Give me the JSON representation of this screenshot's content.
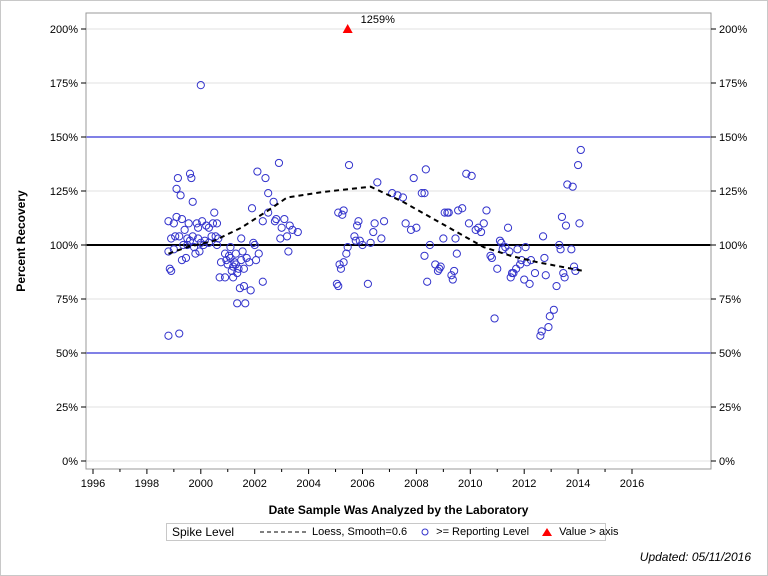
{
  "chart_data": {
    "type": "scatter",
    "xlabel": "Date Sample Was Analyzed by the Laboratory",
    "ylabel": "Percent Recovery",
    "xlim": [
      1995.8,
      2019.0
    ],
    "ylim": [
      -2,
      212
    ],
    "x_ticks": [
      "1996",
      "1998",
      "2000",
      "2002",
      "2004",
      "2006",
      "2008",
      "2010",
      "2012",
      "2014",
      "2016"
    ],
    "y_ticks": [
      "0%",
      "25%",
      "50%",
      "75%",
      "100%",
      "125%",
      "150%",
      "175%",
      "200%"
    ],
    "y_tick_values": [
      0,
      25,
      50,
      75,
      100,
      125,
      150,
      175,
      200
    ],
    "grid": "horizontal",
    "reference_lines": [
      {
        "value": 100,
        "color": "#000000"
      },
      {
        "value": 150,
        "color": "#0000cc"
      },
      {
        "value": 50,
        "color": "#0000cc"
      }
    ],
    "colors": {
      "points": "#3333cc",
      "loess": "#000000",
      "above_axis": "#ff0000",
      "grid": "#e0e0e0"
    },
    "points": [
      [
        1998.8,
        111
      ],
      [
        1998.8,
        97
      ],
      [
        1998.85,
        89
      ],
      [
        1998.9,
        88
      ],
      [
        1998.9,
        103
      ],
      [
        1998.8,
        58
      ],
      [
        1999.0,
        110
      ],
      [
        1999.05,
        104
      ],
      [
        1999.1,
        113
      ],
      [
        1999.1,
        126
      ],
      [
        1999.15,
        131
      ],
      [
        1999.0,
        98
      ],
      [
        1999.2,
        59
      ],
      [
        1999.25,
        123
      ],
      [
        1999.3,
        112
      ],
      [
        1999.2,
        104
      ],
      [
        1999.3,
        93
      ],
      [
        1999.35,
        100
      ],
      [
        1999.4,
        107
      ],
      [
        1999.45,
        94
      ],
      [
        1999.5,
        100
      ],
      [
        1999.5,
        103
      ],
      [
        1999.55,
        110
      ],
      [
        1999.6,
        133
      ],
      [
        1999.65,
        131
      ],
      [
        1999.7,
        120
      ],
      [
        1999.7,
        104
      ],
      [
        1999.75,
        99
      ],
      [
        1999.6,
        102
      ],
      [
        1999.8,
        96
      ],
      [
        1999.85,
        110
      ],
      [
        1999.9,
        108
      ],
      [
        1999.9,
        103
      ],
      [
        1999.95,
        97
      ],
      [
        2000.0,
        101
      ],
      [
        2000.0,
        174
      ],
      [
        2000.05,
        111
      ],
      [
        2000.1,
        100
      ],
      [
        2000.15,
        102
      ],
      [
        2000.2,
        109
      ],
      [
        2000.3,
        108
      ],
      [
        2000.3,
        101
      ],
      [
        2000.4,
        104
      ],
      [
        2000.45,
        110
      ],
      [
        2000.5,
        115
      ],
      [
        2000.55,
        104
      ],
      [
        2000.6,
        100
      ],
      [
        2000.65,
        103
      ],
      [
        2000.7,
        85
      ],
      [
        2000.75,
        92
      ],
      [
        2000.6,
        110
      ],
      [
        2000.9,
        96
      ],
      [
        2000.95,
        93
      ],
      [
        2001.0,
        91
      ],
      [
        2001.05,
        95
      ],
      [
        2000.9,
        85
      ],
      [
        2001.1,
        99
      ],
      [
        2001.1,
        94
      ],
      [
        2001.15,
        88
      ],
      [
        2001.2,
        90
      ],
      [
        2001.25,
        92
      ],
      [
        2001.2,
        85
      ],
      [
        2001.3,
        96
      ],
      [
        2001.3,
        91
      ],
      [
        2001.35,
        87
      ],
      [
        2001.35,
        73
      ],
      [
        2001.45,
        80
      ],
      [
        2001.5,
        93
      ],
      [
        2001.4,
        89
      ],
      [
        2001.5,
        103
      ],
      [
        2001.55,
        97
      ],
      [
        2001.6,
        81
      ],
      [
        2001.65,
        73
      ],
      [
        2001.7,
        94
      ],
      [
        2001.6,
        89
      ],
      [
        2001.8,
        92
      ],
      [
        2001.85,
        79
      ],
      [
        2001.9,
        117
      ],
      [
        2001.95,
        101
      ],
      [
        2002.0,
        100
      ],
      [
        2002.1,
        134
      ],
      [
        2002.15,
        96
      ],
      [
        2002.05,
        93
      ],
      [
        2002.4,
        131
      ],
      [
        2002.5,
        115
      ],
      [
        2002.3,
        83
      ],
      [
        2002.3,
        111
      ],
      [
        2002.5,
        124
      ],
      [
        2002.7,
        120
      ],
      [
        2002.75,
        111
      ],
      [
        2002.8,
        112
      ],
      [
        2002.9,
        138
      ],
      [
        2003.0,
        108
      ],
      [
        2002.95,
        103
      ],
      [
        2003.1,
        112
      ],
      [
        2003.2,
        104
      ],
      [
        2003.25,
        97
      ],
      [
        2003.3,
        109
      ],
      [
        2003.4,
        107
      ],
      [
        2003.6,
        106
      ],
      [
        2005.05,
        82
      ],
      [
        2005.1,
        81
      ],
      [
        2005.1,
        115
      ],
      [
        2005.15,
        91
      ],
      [
        2005.2,
        89
      ],
      [
        2005.25,
        114
      ],
      [
        2005.3,
        116
      ],
      [
        2005.3,
        92
      ],
      [
        2005.4,
        96
      ],
      [
        2005.45,
        99
      ],
      [
        2005.5,
        137
      ],
      [
        2005.7,
        104
      ],
      [
        2005.75,
        102
      ],
      [
        2005.8,
        109
      ],
      [
        2005.85,
        111
      ],
      [
        2005.9,
        102
      ],
      [
        2006.0,
        100
      ],
      [
        2006.2,
        82
      ],
      [
        2006.3,
        101
      ],
      [
        2006.4,
        106
      ],
      [
        2006.45,
        110
      ],
      [
        2006.55,
        129
      ],
      [
        2006.7,
        103
      ],
      [
        2006.8,
        111
      ],
      [
        2007.1,
        124
      ],
      [
        2007.3,
        123
      ],
      [
        2007.5,
        122
      ],
      [
        2007.6,
        110
      ],
      [
        2007.8,
        107
      ],
      [
        2007.9,
        131
      ],
      [
        2008.0,
        108
      ],
      [
        2008.2,
        124
      ],
      [
        2008.3,
        124
      ],
      [
        2008.35,
        135
      ],
      [
        2008.4,
        83
      ],
      [
        2008.3,
        95
      ],
      [
        2008.5,
        100
      ],
      [
        2008.7,
        91
      ],
      [
        2008.8,
        88
      ],
      [
        2008.85,
        89
      ],
      [
        2008.9,
        90
      ],
      [
        2009.0,
        103
      ],
      [
        2009.05,
        115
      ],
      [
        2009.15,
        115
      ],
      [
        2009.2,
        115
      ],
      [
        2009.3,
        86
      ],
      [
        2009.35,
        84
      ],
      [
        2009.4,
        88
      ],
      [
        2009.45,
        103
      ],
      [
        2009.5,
        96
      ],
      [
        2009.55,
        116
      ],
      [
        2009.7,
        117
      ],
      [
        2009.85,
        133
      ],
      [
        2009.95,
        110
      ],
      [
        2010.05,
        132
      ],
      [
        2010.2,
        107
      ],
      [
        2010.3,
        108
      ],
      [
        2010.4,
        106
      ],
      [
        2010.5,
        110
      ],
      [
        2010.6,
        116
      ],
      [
        2010.75,
        95
      ],
      [
        2010.8,
        94
      ],
      [
        2010.9,
        66
      ],
      [
        2011.0,
        89
      ],
      [
        2011.1,
        102
      ],
      [
        2011.15,
        101
      ],
      [
        2011.2,
        98
      ],
      [
        2011.3,
        99
      ],
      [
        2011.4,
        108
      ],
      [
        2011.45,
        97
      ],
      [
        2011.5,
        85
      ],
      [
        2011.55,
        87
      ],
      [
        2011.6,
        87
      ],
      [
        2011.7,
        89
      ],
      [
        2011.75,
        98
      ],
      [
        2011.85,
        91
      ],
      [
        2011.9,
        93
      ],
      [
        2012.0,
        84
      ],
      [
        2012.05,
        99
      ],
      [
        2012.1,
        92
      ],
      [
        2012.2,
        82
      ],
      [
        2012.25,
        93
      ],
      [
        2012.4,
        87
      ],
      [
        2012.6,
        58
      ],
      [
        2012.65,
        60
      ],
      [
        2012.7,
        104
      ],
      [
        2012.75,
        94
      ],
      [
        2012.8,
        86
      ],
      [
        2012.9,
        62
      ],
      [
        2012.95,
        67
      ],
      [
        2013.1,
        70
      ],
      [
        2013.2,
        81
      ],
      [
        2013.3,
        100
      ],
      [
        2013.35,
        98
      ],
      [
        2013.4,
        113
      ],
      [
        2013.45,
        87
      ],
      [
        2013.5,
        85
      ],
      [
        2013.55,
        109
      ],
      [
        2013.6,
        128
      ],
      [
        2013.8,
        127
      ],
      [
        2013.85,
        90
      ],
      [
        2013.9,
        88
      ],
      [
        2013.75,
        98
      ],
      [
        2014.0,
        137
      ],
      [
        2014.1,
        144
      ],
      [
        2014.05,
        110
      ]
    ],
    "loess": {
      "name": "Loess, Smooth=0.6",
      "points": [
        [
          1998.8,
          96
        ],
        [
          1999.5,
          99
        ],
        [
          2000.5,
          102
        ],
        [
          2001.5,
          108
        ],
        [
          2002.5,
          116
        ],
        [
          2003.2,
          122
        ],
        [
          2004.5,
          124.5
        ],
        [
          2006.3,
          127
        ],
        [
          2007.5,
          120
        ],
        [
          2008.5,
          113
        ],
        [
          2009.5,
          106
        ],
        [
          2010.5,
          99
        ],
        [
          2011.5,
          95
        ],
        [
          2012.5,
          92
        ],
        [
          2014.2,
          88
        ]
      ]
    },
    "above_axis": [
      {
        "x": 2005.45,
        "plotted_at": 200,
        "label": "1259%"
      }
    ]
  },
  "legend": {
    "title": "Spike Level",
    "loess_label": "Loess, Smooth=0.6",
    "points_label": ">= Reporting Level",
    "above_label": "Value > axis"
  },
  "footer": {
    "updated": "Updated: 05/11/2016"
  }
}
